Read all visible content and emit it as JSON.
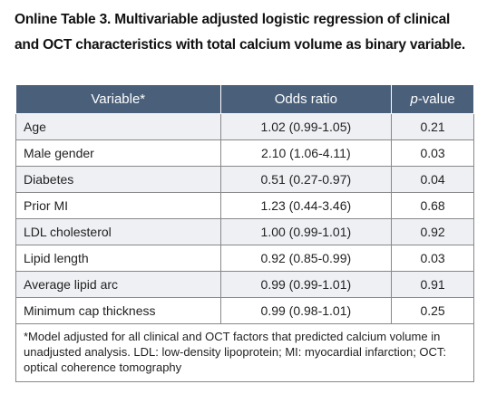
{
  "title": "Online Table 3. Multivariable adjusted logistic regression of clinical and OCT characteristics with total calcium volume as binary variable.",
  "table": {
    "headers": {
      "variable": "Variable*",
      "odds_ratio": "Odds ratio",
      "p_value_italic": "p",
      "p_value_rest": "-value"
    },
    "rows": [
      {
        "variable": "Age",
        "odds_ratio": "1.02 (0.99-1.05)",
        "p_value": "0.21"
      },
      {
        "variable": "Male gender",
        "odds_ratio": "2.10 (1.06-4.11)",
        "p_value": "0.03"
      },
      {
        "variable": "Diabetes",
        "odds_ratio": "0.51 (0.27-0.97)",
        "p_value": "0.04"
      },
      {
        "variable": "Prior MI",
        "odds_ratio": "1.23 (0.44-3.46)",
        "p_value": "0.68"
      },
      {
        "variable": "LDL cholesterol",
        "odds_ratio": "1.00 (0.99-1.01)",
        "p_value": "0.92"
      },
      {
        "variable": "Lipid length",
        "odds_ratio": "0.92 (0.85-0.99)",
        "p_value": "0.03"
      },
      {
        "variable": "Average lipid arc",
        "odds_ratio": "0.99 (0.99-1.01)",
        "p_value": "0.91"
      },
      {
        "variable": "Minimum cap thickness",
        "odds_ratio": "0.99 (0.98-1.01)",
        "p_value": "0.25"
      }
    ],
    "footnote": "*Model adjusted for all clinical and OCT factors that predicted calcium volume in unadjusted analysis. LDL: low-density lipoprotein; MI: myocardial infarction; OCT: optical coherence tomography"
  }
}
